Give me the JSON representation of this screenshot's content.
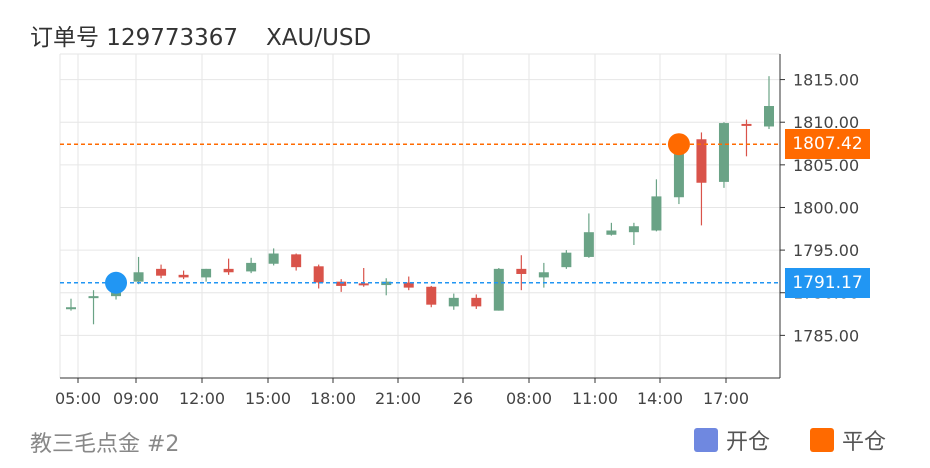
{
  "header": {
    "order_label": "订单号 129773367",
    "symbol": "XAU/USD"
  },
  "footer": {
    "account": "教三毛点金 #2"
  },
  "legend": [
    {
      "label": "开仓",
      "color": "#6f88e0"
    },
    {
      "label": "平仓",
      "color": "#ff6a00"
    }
  ],
  "colors": {
    "up": "#6aa386",
    "down": "#d9534a",
    "open_line": "#2196f3",
    "close_line": "#ff6a00",
    "grid": "#e6e6e6"
  },
  "chart_data": {
    "type": "candlestick",
    "x_ticks": [
      "05:00",
      "09:00",
      "12:00",
      "15:00",
      "18:00",
      "21:00",
      "26",
      "08:00",
      "11:00",
      "14:00",
      "17:00"
    ],
    "y_ticks": [
      "1785.00",
      "1790.00",
      "1795.00",
      "1800.00",
      "1805.00",
      "1810.00",
      "1815.00"
    ],
    "ylim": [
      1780,
      1818
    ],
    "grid": true,
    "candles": [
      {
        "o": 1788.1,
        "h": 1789.3,
        "l": 1787.9,
        "c": 1788.3
      },
      {
        "o": 1789.5,
        "h": 1790.3,
        "l": 1786.3,
        "c": 1789.6
      },
      {
        "o": 1789.6,
        "h": 1792.3,
        "l": 1789.2,
        "c": 1792.0
      },
      {
        "o": 1791.3,
        "h": 1794.2,
        "l": 1791.0,
        "c": 1792.4
      },
      {
        "o": 1792.8,
        "h": 1793.3,
        "l": 1791.7,
        "c": 1792.0
      },
      {
        "o": 1792.1,
        "h": 1792.6,
        "l": 1791.6,
        "c": 1791.8
      },
      {
        "o": 1791.8,
        "h": 1792.8,
        "l": 1791.3,
        "c": 1792.8
      },
      {
        "o": 1792.8,
        "h": 1794.0,
        "l": 1792.1,
        "c": 1792.4
      },
      {
        "o": 1792.5,
        "h": 1794.1,
        "l": 1792.3,
        "c": 1793.5
      },
      {
        "o": 1793.4,
        "h": 1795.2,
        "l": 1793.2,
        "c": 1794.6
      },
      {
        "o": 1794.5,
        "h": 1794.6,
        "l": 1792.6,
        "c": 1793.0
      },
      {
        "o": 1793.1,
        "h": 1793.3,
        "l": 1790.5,
        "c": 1791.2
      },
      {
        "o": 1791.3,
        "h": 1791.6,
        "l": 1790.1,
        "c": 1790.8
      },
      {
        "o": 1791.1,
        "h": 1792.9,
        "l": 1790.7,
        "c": 1790.9
      },
      {
        "o": 1790.9,
        "h": 1791.7,
        "l": 1789.7,
        "c": 1791.3
      },
      {
        "o": 1791.2,
        "h": 1791.9,
        "l": 1790.3,
        "c": 1790.6
      },
      {
        "o": 1790.7,
        "h": 1790.8,
        "l": 1788.3,
        "c": 1788.6
      },
      {
        "o": 1788.4,
        "h": 1789.9,
        "l": 1788.0,
        "c": 1789.4
      },
      {
        "o": 1789.4,
        "h": 1789.8,
        "l": 1788.1,
        "c": 1788.4
      },
      {
        "o": 1787.9,
        "h": 1792.9,
        "l": 1787.9,
        "c": 1792.8
      },
      {
        "o": 1792.8,
        "h": 1794.4,
        "l": 1790.3,
        "c": 1792.2
      },
      {
        "o": 1791.8,
        "h": 1793.5,
        "l": 1790.6,
        "c": 1792.4
      },
      {
        "o": 1793.0,
        "h": 1795.0,
        "l": 1792.8,
        "c": 1794.7
      },
      {
        "o": 1794.2,
        "h": 1799.3,
        "l": 1794.1,
        "c": 1797.1
      },
      {
        "o": 1796.8,
        "h": 1798.2,
        "l": 1796.7,
        "c": 1797.3
      },
      {
        "o": 1797.1,
        "h": 1798.2,
        "l": 1795.6,
        "c": 1797.8
      },
      {
        "o": 1797.3,
        "h": 1803.3,
        "l": 1797.2,
        "c": 1801.3
      },
      {
        "o": 1801.2,
        "h": 1807.9,
        "l": 1800.4,
        "c": 1807.2
      },
      {
        "o": 1808.0,
        "h": 1808.8,
        "l": 1797.9,
        "c": 1802.9
      },
      {
        "o": 1803.0,
        "h": 1810.0,
        "l": 1802.3,
        "c": 1809.9
      },
      {
        "o": 1809.8,
        "h": 1810.3,
        "l": 1806.0,
        "c": 1809.6
      },
      {
        "o": 1809.5,
        "h": 1815.4,
        "l": 1809.2,
        "c": 1811.9
      }
    ],
    "open_trade": {
      "price": 1791.17,
      "label": "1791.17",
      "candle_index": 2
    },
    "close_trade": {
      "price": 1807.42,
      "label": "1807.42",
      "candle_index": 27
    }
  }
}
